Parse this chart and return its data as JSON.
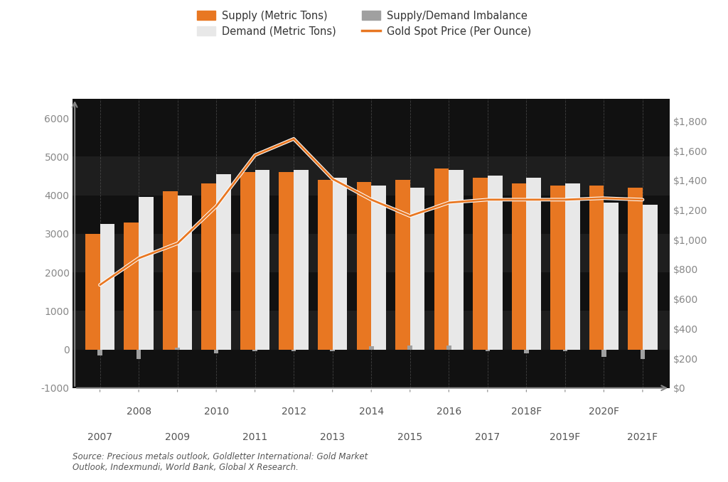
{
  "years": [
    2007,
    2008,
    2009,
    2010,
    2011,
    2012,
    2013,
    2014,
    2015,
    2016,
    2017,
    2018,
    2019,
    2020,
    2021
  ],
  "supply": [
    3000,
    3300,
    4100,
    4300,
    4600,
    4600,
    4400,
    4350,
    4400,
    4700,
    4450,
    4300,
    4250,
    4250,
    4200
  ],
  "demand": [
    3250,
    3950,
    4000,
    4550,
    4650,
    4650,
    4450,
    4250,
    4200,
    4650,
    4500,
    4450,
    4300,
    3800,
    3750
  ],
  "imbalance": [
    -150,
    -250,
    50,
    -100,
    -50,
    -50,
    -50,
    80,
    100,
    100,
    -50,
    -100,
    -50,
    -200,
    -250
  ],
  "gold_price": [
    695,
    875,
    975,
    1225,
    1570,
    1680,
    1410,
    1270,
    1160,
    1250,
    1270,
    1270,
    1270,
    1280,
    1270
  ],
  "supply_color": "#E87722",
  "demand_color": "#E8E8E8",
  "imbalance_color": "#A0A0A0",
  "line_color": "#E87722",
  "line_outer_color": "#FFFFFF",
  "bg_color_dark": "#111111",
  "bg_color_light": "#1E1E1E",
  "grid_v_color": "#555555",
  "text_color": "#888888",
  "axis_color": "#888888",
  "ylim_left": [
    -1000,
    6500
  ],
  "ylim_right": [
    0,
    1950
  ],
  "yticks_left": [
    -1000,
    0,
    1000,
    2000,
    3000,
    4000,
    5000,
    6000
  ],
  "yticks_right": [
    0,
    200,
    400,
    600,
    800,
    1000,
    1200,
    1400,
    1600,
    1800
  ],
  "ytick_labels_right": [
    "$0",
    "$200",
    "$400",
    "$600",
    "$800",
    "$1,000",
    "$1,200",
    "$1,400",
    "$1,600",
    "$1,800"
  ],
  "source_text": "Source: Precious metals outlook, Goldletter International: Gold Market\nOutlook, Indexmundi, World Bank, Global X Research.",
  "legend_supply": "Supply (Metric Tons)",
  "legend_demand": "Demand (Metric Tons)",
  "legend_imbalance": "Supply/Demand Imbalance",
  "legend_price": "Gold Spot Price (Per Ounce)",
  "top_xlabels": [
    [
      1,
      "2008"
    ],
    [
      3,
      "2010"
    ],
    [
      5,
      "2012"
    ],
    [
      7,
      "2014"
    ],
    [
      9,
      "2016"
    ],
    [
      11,
      "2018F"
    ],
    [
      13,
      "2020F"
    ]
  ],
  "bot_xlabels": [
    [
      0,
      "2007"
    ],
    [
      2,
      "2009"
    ],
    [
      4,
      "2011"
    ],
    [
      6,
      "2013"
    ],
    [
      8,
      "2015"
    ],
    [
      10,
      "2017"
    ],
    [
      12,
      "2019F"
    ],
    [
      14,
      "2021F"
    ]
  ]
}
